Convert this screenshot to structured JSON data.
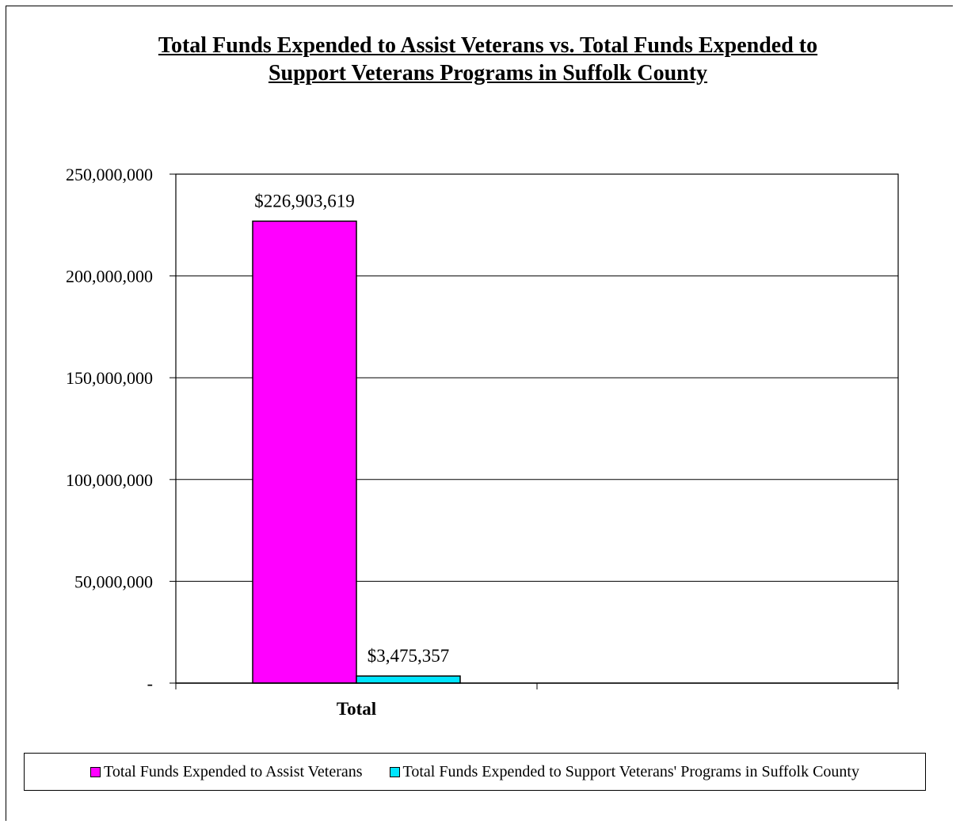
{
  "chart_data": {
    "type": "bar",
    "title": [
      "Total  Funds Expended to Assist Veterans vs. Total Funds Expended to",
      "Support Veterans Programs in Suffolk County"
    ],
    "categories": [
      "Total"
    ],
    "series": [
      {
        "name": "Total Funds Expended to Assist Veterans",
        "values": [
          226903619
        ],
        "color": "#ff00ff",
        "data_label": "$226,903,619"
      },
      {
        "name": "Total Funds Expended to Support Veterans' Programs in Suffolk County",
        "values": [
          3475357
        ],
        "color": "#00e5ff",
        "data_label": "$3,475,357"
      }
    ],
    "ylim": [
      0,
      250000000
    ],
    "y_ticks": [
      0,
      50000000,
      100000000,
      150000000,
      200000000,
      250000000
    ],
    "y_tick_labels": [
      "-",
      "50,000,000",
      "100,000,000",
      "150,000,000",
      "200,000,000",
      "250,000,000"
    ],
    "grid": true,
    "legend_position": "bottom"
  }
}
